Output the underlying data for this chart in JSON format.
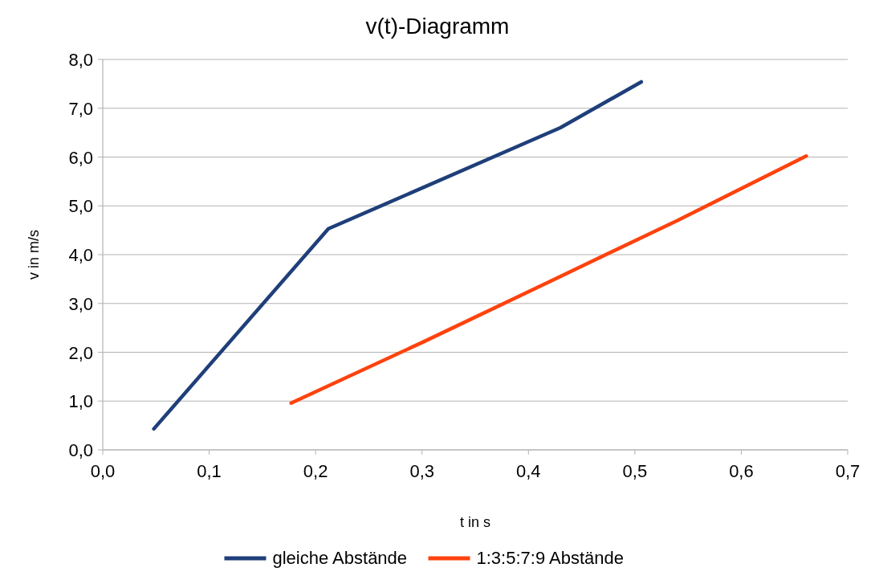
{
  "chart_data": {
    "type": "line",
    "title": "v(t)-Diagramm",
    "xlabel": "t in s",
    "ylabel": "v in m/s",
    "series": [
      {
        "name": "gleiche Abstände",
        "color": "#1f3f7a",
        "x": [
          0.048,
          0.212,
          0.43,
          0.506
        ],
        "values": [
          0.43,
          4.53,
          6.6,
          7.54
        ]
      },
      {
        "name": "1:3:5:7:9 Abstände",
        "color": "#ff420e",
        "x": [
          0.177,
          0.3,
          0.42,
          0.54,
          0.661
        ],
        "values": [
          0.96,
          2.2,
          3.45,
          4.7,
          6.02
        ]
      }
    ],
    "xlim": [
      0,
      0.7
    ],
    "ylim": [
      0,
      8
    ],
    "xticks": [
      {
        "value": 0,
        "label": "0,0"
      },
      {
        "value": 0.1,
        "label": "0,1"
      },
      {
        "value": 0.2,
        "label": "0,2"
      },
      {
        "value": 0.3,
        "label": "0,3"
      },
      {
        "value": 0.4,
        "label": "0,4"
      },
      {
        "value": 0.5,
        "label": "0,5"
      },
      {
        "value": 0.6,
        "label": "0,6"
      },
      {
        "value": 0.7,
        "label": "0,7"
      }
    ],
    "yticks": [
      {
        "value": 0,
        "label": "0,0"
      },
      {
        "value": 1,
        "label": "1,0"
      },
      {
        "value": 2,
        "label": "2,0"
      },
      {
        "value": 3,
        "label": "3,0"
      },
      {
        "value": 4,
        "label": "4,0"
      },
      {
        "value": 5,
        "label": "5,0"
      },
      {
        "value": 6,
        "label": "6,0"
      },
      {
        "value": 7,
        "label": "7,0"
      },
      {
        "value": 8,
        "label": "8,0"
      }
    ],
    "grid": "y",
    "legend": "bottom",
    "marker": "none",
    "line_style": "solid"
  }
}
